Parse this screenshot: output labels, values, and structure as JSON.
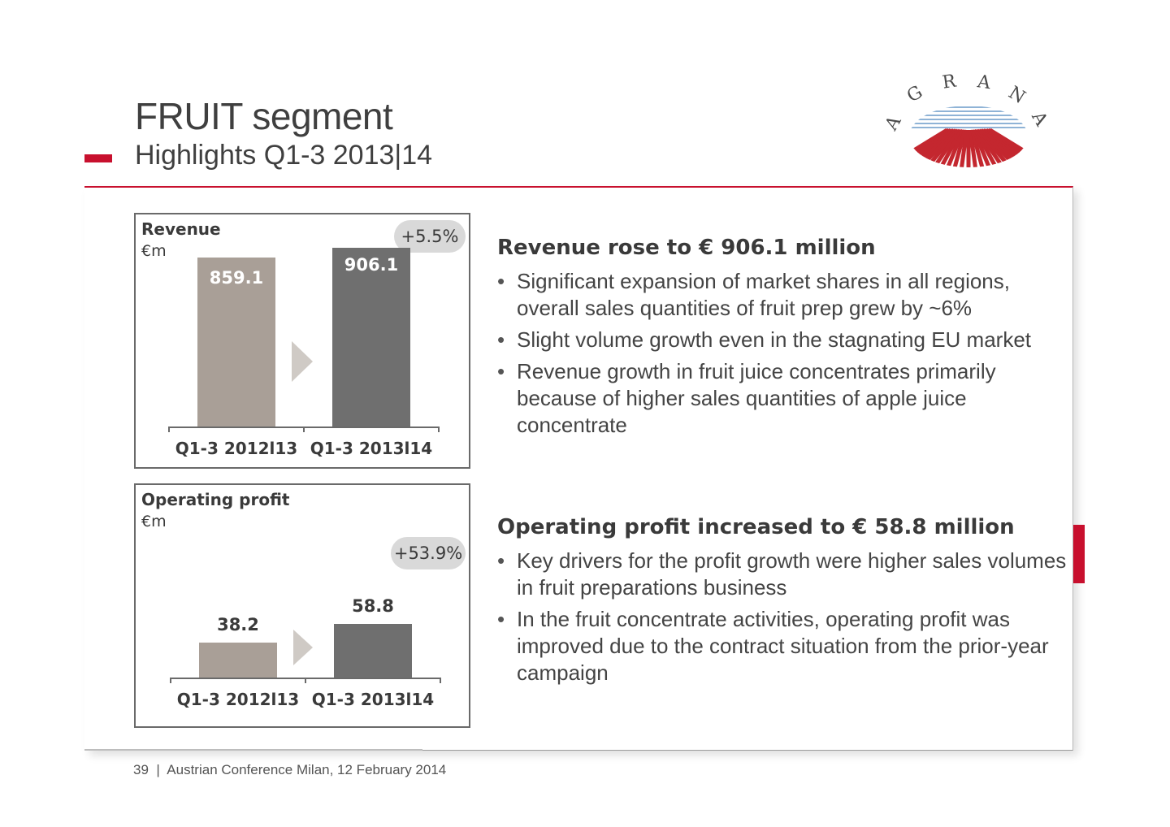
{
  "header": {
    "title": "FRUIT segment",
    "subtitle": "Highlights Q1-3 2013|14",
    "logo_text": "AGRANA"
  },
  "colors": {
    "accent": "#c8102e",
    "bar_previous": "#a99f97",
    "bar_current": "#6f6f6f",
    "badge": "#d9d9d9"
  },
  "chart_data": [
    {
      "type": "bar",
      "title": "Revenue",
      "unit": "€m",
      "categories": [
        "Q1-3 2012l13",
        "Q1-3 2013l14"
      ],
      "values": [
        859.1,
        906.1
      ],
      "value_labels": [
        "859.1",
        "906.1"
      ],
      "change_label": "+5.5%"
    },
    {
      "type": "bar",
      "title": "Operating profit",
      "unit": "€m",
      "categories": [
        "Q1-3 2012l13",
        "Q1-3 2013l14"
      ],
      "values": [
        38.2,
        58.8
      ],
      "value_labels": [
        "38.2",
        "58.8"
      ],
      "change_label": "+53.9%"
    }
  ],
  "revenue_text": {
    "heading": "Revenue rose to € 906.1 million",
    "bullets": [
      "Significant expansion of market shares in all regions, overall sales quantities of fruit prep grew by ~6%",
      "Slight volume growth even in the stagnating EU market",
      "Revenue growth in fruit juice concentrates primarily because of higher sales quantities of apple juice concentrate"
    ]
  },
  "profit_text": {
    "heading": "Operating profit increased to € 58.8 million",
    "bullets": [
      "Key drivers for the profit growth were higher sales volumes in fruit preparations business",
      "In the fruit concentrate activities, operating profit was improved due to the contract situation from the prior-year campaign"
    ]
  },
  "footer": {
    "text": "39  |  Austrian Conference Milan, 12 February 2014"
  }
}
